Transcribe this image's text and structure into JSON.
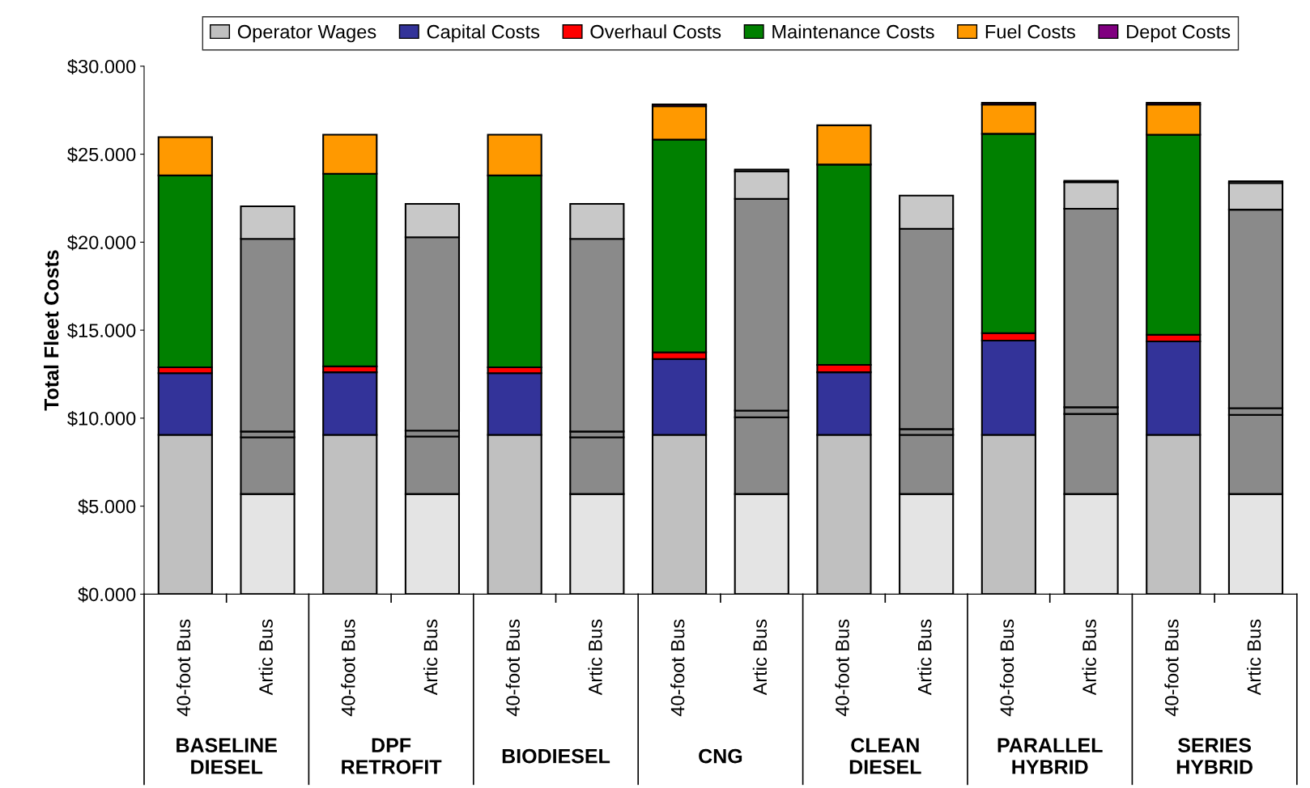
{
  "chart_data": {
    "type": "bar",
    "stacked": true,
    "ylabel": "Total Fleet Costs",
    "categories": [
      "40-foot Bus",
      "Artic Bus",
      "40-foot Bus",
      "Artic Bus",
      "40-foot Bus",
      "Artic Bus",
      "40-foot Bus",
      "Artic Bus",
      "40-foot Bus",
      "Artic Bus",
      "40-foot Bus",
      "Artic Bus",
      "40-foot Bus",
      "Artic Bus"
    ],
    "annotations": [
      "BASELINE\nDIESEL",
      "DPF\nRETROFIT",
      "BIODIESEL",
      "CNG",
      "CLEAN\nDIESEL",
      "PARALLEL\nHYBRID",
      "SERIES\nHYBRID"
    ],
    "ylim": [
      0,
      30
    ],
    "yticks": [
      {
        "value": 0,
        "label": "$0.000"
      },
      {
        "value": 5,
        "label": "$5.000"
      },
      {
        "value": 10,
        "label": "$10.000"
      },
      {
        "value": 15,
        "label": "$15.000"
      },
      {
        "value": 20,
        "label": "$20.000"
      },
      {
        "value": 25,
        "label": "$25.000"
      },
      {
        "value": 30,
        "label": "$30.000"
      }
    ],
    "legend": "top",
    "grid": false,
    "series": [
      {
        "name": "Operator Wages",
        "color": "#c0c0c0",
        "colors": [
          "#c0c0c0",
          "#e4e4e4",
          "#c0c0c0",
          "#e4e4e4",
          "#c0c0c0",
          "#e4e4e4",
          "#c0c0c0",
          "#e4e4e4",
          "#c0c0c0",
          "#e4e4e4",
          "#c0c0c0",
          "#e4e4e4",
          "#c0c0c0",
          "#e4e4e4"
        ],
        "values": [
          9.05,
          5.69,
          9.05,
          5.69,
          9.05,
          5.69,
          9.05,
          5.69,
          9.05,
          5.69,
          9.05,
          5.69,
          9.05,
          5.69
        ]
      },
      {
        "name": "Capital Costs",
        "color": "#333399",
        "colors": [
          "#333399",
          "#8a8a8a",
          "#333399",
          "#8a8a8a",
          "#333399",
          "#8a8a8a",
          "#333399",
          "#8a8a8a",
          "#333399",
          "#8a8a8a",
          "#333399",
          "#8a8a8a",
          "#333399",
          "#8a8a8a"
        ],
        "values": [
          3.51,
          3.22,
          3.56,
          3.27,
          3.51,
          3.22,
          4.31,
          4.36,
          3.56,
          3.36,
          5.36,
          4.55,
          5.31,
          4.5
        ]
      },
      {
        "name": "Overhaul Costs",
        "color": "#ff0000",
        "colors": [
          "#ff0000",
          "#8a8a8a",
          "#ff0000",
          "#8a8a8a",
          "#ff0000",
          "#8a8a8a",
          "#ff0000",
          "#8a8a8a",
          "#ff0000",
          "#8a8a8a",
          "#ff0000",
          "#8a8a8a",
          "#ff0000",
          "#8a8a8a"
        ],
        "values": [
          0.33,
          0.33,
          0.33,
          0.33,
          0.33,
          0.33,
          0.38,
          0.38,
          0.42,
          0.33,
          0.42,
          0.38,
          0.38,
          0.38
        ]
      },
      {
        "name": "Maintenance Costs",
        "color": "#008000",
        "colors": [
          "#008000",
          "#8a8a8a",
          "#008000",
          "#8a8a8a",
          "#008000",
          "#8a8a8a",
          "#008000",
          "#8a8a8a",
          "#008000",
          "#8a8a8a",
          "#008000",
          "#8a8a8a",
          "#008000",
          "#8a8a8a"
        ],
        "values": [
          10.9,
          10.95,
          10.95,
          10.99,
          10.9,
          10.95,
          12.09,
          12.03,
          11.38,
          11.38,
          11.33,
          11.28,
          11.37,
          11.28
        ]
      },
      {
        "name": "Fuel Costs",
        "color": "#ff9900",
        "colors": [
          "#ff9900",
          "#c8c8c8",
          "#ff9900",
          "#c8c8c8",
          "#ff9900",
          "#c8c8c8",
          "#ff9900",
          "#c8c8c8",
          "#ff9900",
          "#c8c8c8",
          "#ff9900",
          "#c8c8c8",
          "#ff9900",
          "#c8c8c8"
        ],
        "values": [
          2.18,
          1.85,
          2.22,
          1.9,
          2.32,
          1.99,
          1.9,
          1.57,
          2.23,
          1.89,
          1.66,
          1.51,
          1.71,
          1.51
        ]
      },
      {
        "name": "Depot Costs",
        "color": "#800080",
        "colors": [
          "#800080",
          "#8a8a8a",
          "#800080",
          "#8a8a8a",
          "#800080",
          "#8a8a8a",
          "#800080",
          "#8a8a8a",
          "#800080",
          "#8a8a8a",
          "#800080",
          "#8a8a8a",
          "#800080",
          "#8a8a8a"
        ],
        "values": [
          null,
          null,
          null,
          null,
          null,
          null,
          0.1,
          0.1,
          null,
          null,
          0.1,
          0.08,
          0.1,
          0.1
        ]
      }
    ]
  }
}
